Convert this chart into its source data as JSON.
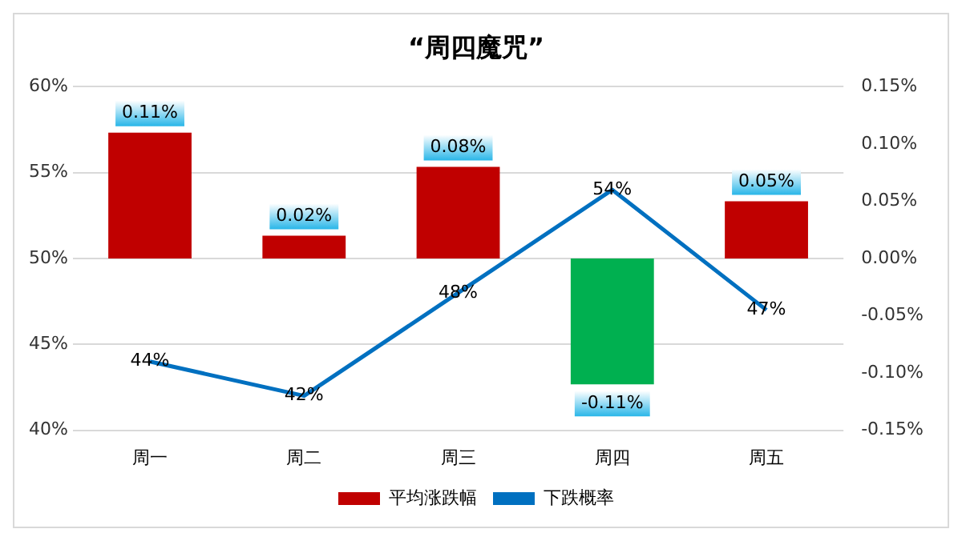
{
  "chart_data": {
    "type": "bar",
    "title": "“周四魔咒”",
    "categories": [
      "周一",
      "周二",
      "周三",
      "周四",
      "周五"
    ],
    "series": [
      {
        "name": "平均涨跌幅",
        "axis": "y2",
        "color": "#c00000",
        "colors": [
          "#c00000",
          "#c00000",
          "#c00000",
          "#00b050",
          "#c00000"
        ],
        "values": [
          0.11,
          0.02,
          0.08,
          -0.11,
          0.05
        ],
        "value_labels": [
          "0.11%",
          "0.02%",
          "0.08%",
          "-0.11%",
          "0.05%"
        ]
      },
      {
        "name": "下跌概率",
        "type": "line",
        "axis": "y",
        "color": "#0070c0",
        "values": [
          44,
          42,
          48,
          54,
          47
        ],
        "value_labels": [
          "44%",
          "42%",
          "48%",
          "54%",
          "47%"
        ]
      }
    ],
    "ylim": [
      40,
      60
    ],
    "yticks": [
      {
        "value": 40,
        "label": "40%"
      },
      {
        "value": 45,
        "label": "45%"
      },
      {
        "value": 50,
        "label": "50%"
      },
      {
        "value": 55,
        "label": "55%"
      },
      {
        "value": 60,
        "label": "60%"
      }
    ],
    "y2lim": [
      -0.15,
      0.15
    ],
    "y2ticks": [
      {
        "value": -0.15,
        "label": "-0.15%"
      },
      {
        "value": -0.1,
        "label": "-0.10%"
      },
      {
        "value": -0.05,
        "label": "-0.05%"
      },
      {
        "value": 0,
        "label": "0.00%"
      },
      {
        "value": 0.05,
        "label": "0.05%"
      },
      {
        "value": 0.1,
        "label": "0.10%"
      },
      {
        "value": 0.15,
        "label": "0.15%"
      }
    ],
    "grid": "y",
    "legend": "bottom",
    "marker": "none",
    "line_style": "solid"
  }
}
